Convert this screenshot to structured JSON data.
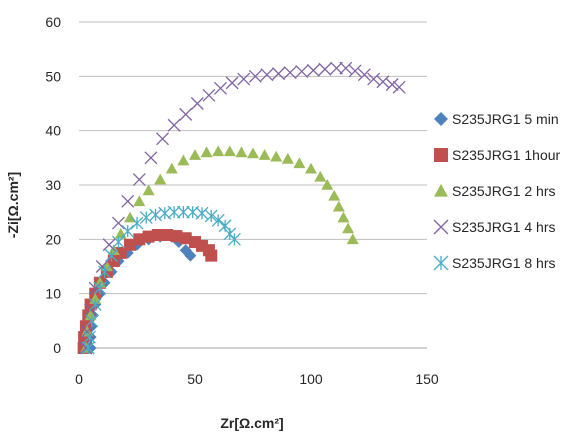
{
  "chart_data": {
    "type": "scatter",
    "xlabel": "Zr[Ω.cm²]",
    "ylabel": "-Zi[Ω.cm²]",
    "xlim": [
      0,
      150
    ],
    "ylim": [
      0,
      60
    ],
    "x_ticks": [
      0,
      50,
      100,
      150
    ],
    "y_ticks": [
      0,
      10,
      20,
      30,
      40,
      50,
      60
    ],
    "grid": "horizontal",
    "legend_position": "right",
    "series": [
      {
        "name": "S235JRG1 5 min",
        "color": "#4f81bd",
        "marker": "diamond",
        "points": [
          [
            5,
            0
          ],
          [
            5,
            2
          ],
          [
            5.5,
            4
          ],
          [
            6,
            6
          ],
          [
            7,
            8
          ],
          [
            9,
            10
          ],
          [
            11,
            12
          ],
          [
            14,
            14
          ],
          [
            17,
            16
          ],
          [
            21,
            17.5
          ],
          [
            25,
            19
          ],
          [
            30,
            20
          ],
          [
            35,
            20.5
          ],
          [
            40,
            20.5
          ],
          [
            43,
            19.5
          ],
          [
            46,
            18
          ],
          [
            48,
            17
          ]
        ]
      },
      {
        "name": "S235JRG1 1hour",
        "color": "#c0504d",
        "marker": "square",
        "points": [
          [
            2,
            0
          ],
          [
            2.2,
            2
          ],
          [
            3,
            4
          ],
          [
            4,
            6
          ],
          [
            5,
            8
          ],
          [
            7,
            10
          ],
          [
            9,
            12
          ],
          [
            12,
            14
          ],
          [
            15,
            16
          ],
          [
            18,
            17.5
          ],
          [
            22,
            19
          ],
          [
            26,
            20
          ],
          [
            30,
            20.5
          ],
          [
            34,
            20.8
          ],
          [
            38,
            20.8
          ],
          [
            42,
            20.6
          ],
          [
            46,
            20.2
          ],
          [
            50,
            19.5
          ],
          [
            53,
            18.8
          ],
          [
            56,
            18
          ],
          [
            57,
            17
          ]
        ]
      },
      {
        "name": "S235JRG1 2 hrs",
        "color": "#9bbb59",
        "marker": "triangle",
        "points": [
          [
            3,
            0
          ],
          [
            3.5,
            3
          ],
          [
            5,
            6
          ],
          [
            7,
            9
          ],
          [
            9,
            12
          ],
          [
            12,
            15
          ],
          [
            15,
            18
          ],
          [
            18,
            21
          ],
          [
            22,
            24
          ],
          [
            26,
            27
          ],
          [
            30,
            29
          ],
          [
            35,
            31
          ],
          [
            40,
            33
          ],
          [
            45,
            34.5
          ],
          [
            50,
            35.5
          ],
          [
            55,
            36
          ],
          [
            60,
            36.2
          ],
          [
            65,
            36.2
          ],
          [
            70,
            36
          ],
          [
            75,
            35.8
          ],
          [
            80,
            35.5
          ],
          [
            85,
            35.2
          ],
          [
            90,
            34.8
          ],
          [
            95,
            34
          ],
          [
            100,
            33
          ],
          [
            104,
            31.5
          ],
          [
            107,
            30
          ],
          [
            110,
            28
          ],
          [
            112,
            26
          ],
          [
            114,
            24
          ],
          [
            116,
            22
          ],
          [
            118,
            20
          ]
        ]
      },
      {
        "name": "S235JRG1 4 hrs",
        "color": "#8064a2",
        "marker": "x",
        "points": [
          [
            3,
            0
          ],
          [
            3.5,
            3
          ],
          [
            5,
            7
          ],
          [
            7,
            11
          ],
          [
            10,
            15
          ],
          [
            13,
            19
          ],
          [
            17,
            23
          ],
          [
            21,
            27
          ],
          [
            26,
            31
          ],
          [
            31,
            35
          ],
          [
            36,
            38.5
          ],
          [
            41,
            41
          ],
          [
            46,
            43
          ],
          [
            51,
            45
          ],
          [
            56,
            46.5
          ],
          [
            61,
            47.8
          ],
          [
            66,
            48.8
          ],
          [
            71,
            49.5
          ],
          [
            76,
            50
          ],
          [
            81,
            50.3
          ],
          [
            86,
            50.5
          ],
          [
            91,
            50.7
          ],
          [
            96,
            50.9
          ],
          [
            101,
            51.1
          ],
          [
            106,
            51.3
          ],
          [
            111,
            51.5
          ],
          [
            115,
            51.5
          ],
          [
            119,
            51
          ],
          [
            123,
            50.3
          ],
          [
            127,
            49.5
          ],
          [
            131,
            49
          ],
          [
            135,
            48.5
          ],
          [
            138,
            48
          ]
        ]
      },
      {
        "name": "S235JRG1 8 hrs",
        "color": "#4bacc6",
        "marker": "asterisk",
        "points": [
          [
            4,
            0
          ],
          [
            4.5,
            2
          ],
          [
            5.5,
            5
          ],
          [
            7,
            8
          ],
          [
            9,
            11
          ],
          [
            11,
            14
          ],
          [
            14,
            17
          ],
          [
            17,
            19.5
          ],
          [
            21,
            21.5
          ],
          [
            25,
            23
          ],
          [
            29,
            24
          ],
          [
            33,
            24.5
          ],
          [
            37,
            24.8
          ],
          [
            41,
            25
          ],
          [
            45,
            25
          ],
          [
            49,
            25
          ],
          [
            53,
            24.8
          ],
          [
            57,
            24.3
          ],
          [
            60,
            23.5
          ],
          [
            63,
            22.5
          ],
          [
            65,
            21
          ],
          [
            67,
            20
          ]
        ]
      }
    ]
  }
}
